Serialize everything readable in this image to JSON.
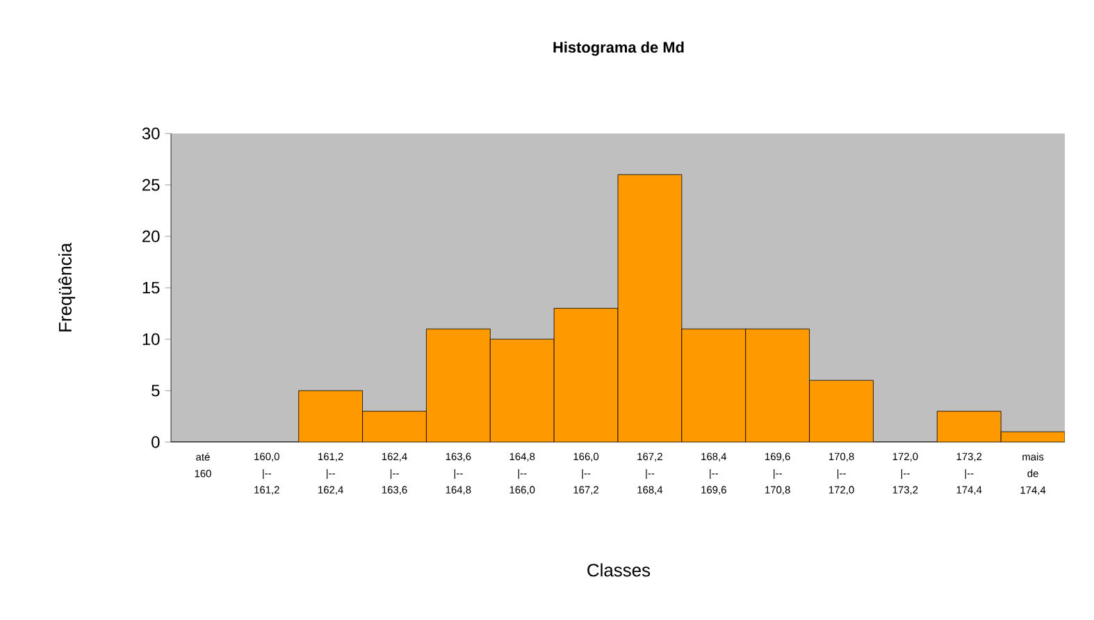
{
  "chart_data": {
    "type": "bar",
    "title": "Histograma de Md",
    "xlabel": "Classes",
    "ylabel": "Freqüência",
    "categories": [
      "até 160",
      "160,0 |-- 161,2",
      "161,2 |-- 162,4",
      "162,4 |-- 163,6",
      "163,6 |-- 164,8",
      "164,8 |-- 166,0",
      "166,0 |-- 167,2",
      "167,2 |-- 168,4",
      "168,4 |-- 169,6",
      "169,6 |-- 170,8",
      "170,8 |-- 172,0",
      "172,0 |-- 173,2",
      "173,2 |-- 174,4",
      "mais de 174,4"
    ],
    "values": [
      0,
      0,
      5,
      3,
      11,
      10,
      13,
      26,
      11,
      11,
      6,
      0,
      3,
      1
    ],
    "color": "#ff9900",
    "ylim": [
      0,
      30
    ],
    "yticks": [
      0,
      5,
      10,
      15,
      20,
      25,
      30
    ]
  }
}
